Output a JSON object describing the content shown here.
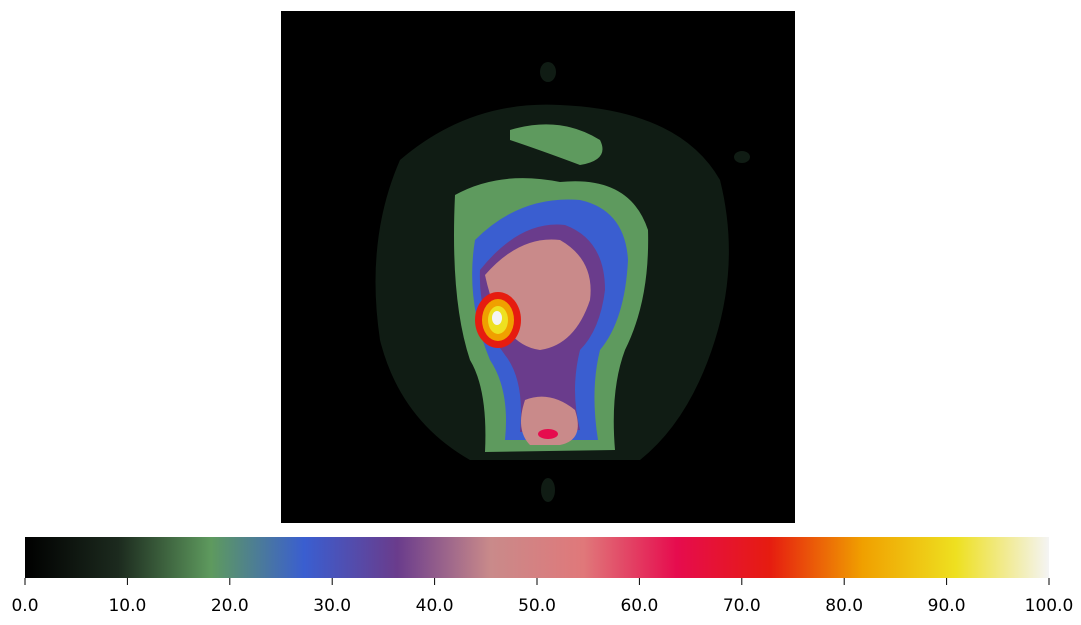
{
  "chart_data": {
    "type": "colorbar",
    "clim": [
      0,
      100
    ],
    "colormap": [
      "#000000",
      "#1c2a1e",
      "#5e9a5e",
      "#3a5ed0",
      "#6a3c8c",
      "#c98a8a",
      "#e0787a",
      "#e60c4e",
      "#e61c10",
      "#f0a000",
      "#eee020",
      "#f4f4f4"
    ],
    "ticks": [
      {
        "value": 0,
        "label": "0.0"
      },
      {
        "value": 10,
        "label": "10.0"
      },
      {
        "value": 20,
        "label": "20.0"
      },
      {
        "value": 30,
        "label": "30.0"
      },
      {
        "value": 40,
        "label": "40.0"
      },
      {
        "value": 50,
        "label": "50.0"
      },
      {
        "value": 60,
        "label": "60.0"
      },
      {
        "value": 70,
        "label": "70.0"
      },
      {
        "value": 80,
        "label": "80.0"
      },
      {
        "value": 90,
        "label": "90.0"
      },
      {
        "value": 100,
        "label": "100.0"
      }
    ]
  }
}
